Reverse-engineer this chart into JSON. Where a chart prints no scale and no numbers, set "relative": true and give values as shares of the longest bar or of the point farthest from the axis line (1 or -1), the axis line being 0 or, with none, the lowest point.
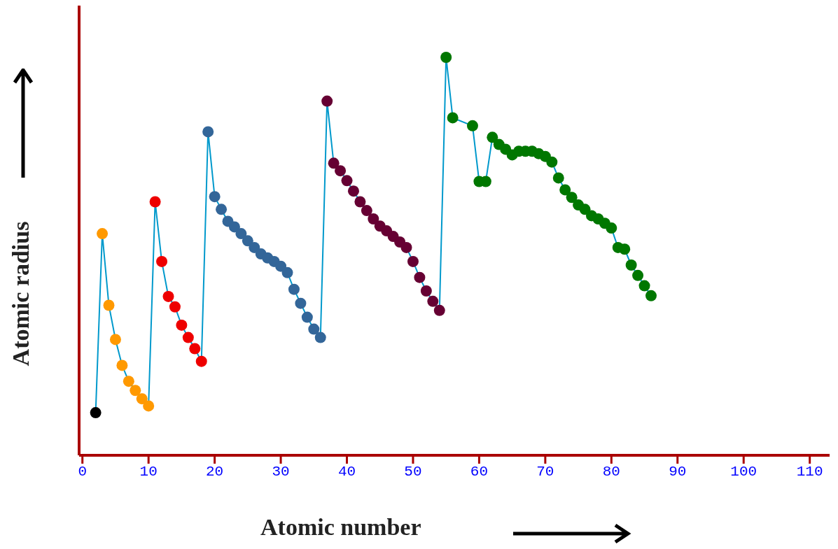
{
  "chart_data": {
    "type": "line",
    "xlabel": "Atomic number",
    "ylabel": "Atomic radius",
    "relative": true,
    "marker": "circle",
    "xlim": [
      -0.5,
      113
    ],
    "xticks": [
      0,
      10,
      20,
      30,
      40,
      50,
      60,
      70,
      80,
      90,
      100,
      110
    ],
    "x": [
      2,
      3,
      4,
      5,
      6,
      7,
      8,
      9,
      10,
      11,
      12,
      13,
      14,
      15,
      16,
      17,
      18,
      19,
      20,
      21,
      22,
      23,
      24,
      25,
      26,
      27,
      28,
      29,
      30,
      31,
      32,
      33,
      34,
      35,
      36,
      37,
      38,
      39,
      40,
      41,
      42,
      43,
      44,
      45,
      46,
      47,
      48,
      49,
      50,
      51,
      52,
      53,
      54,
      55,
      56,
      59,
      60,
      61,
      62,
      63,
      64,
      65,
      66,
      67,
      68,
      69,
      70,
      71,
      72,
      73,
      74,
      75,
      76,
      77,
      78,
      79,
      80,
      81,
      82,
      83,
      84,
      85,
      86
    ],
    "series": [
      {
        "color": "#0099cc",
        "values": [
          0.107,
          0.557,
          0.377,
          0.291,
          0.226,
          0.186,
          0.163,
          0.142,
          0.124,
          0.637,
          0.487,
          0.399,
          0.373,
          0.327,
          0.296,
          0.268,
          0.236,
          0.813,
          0.65,
          0.618,
          0.588,
          0.574,
          0.557,
          0.539,
          0.522,
          0.506,
          0.496,
          0.487,
          0.475,
          0.459,
          0.417,
          0.382,
          0.347,
          0.317,
          0.296,
          0.89,
          0.734,
          0.715,
          0.69,
          0.664,
          0.637,
          0.615,
          0.594,
          0.576,
          0.564,
          0.55,
          0.536,
          0.522,
          0.487,
          0.447,
          0.413,
          0.387,
          0.364,
          1,
          0.848,
          0.828,
          0.688,
          0.688,
          0.799,
          0.781,
          0.769,
          0.755,
          0.764,
          0.764,
          0.764,
          0.758,
          0.751,
          0.737,
          0.697,
          0.667,
          0.648,
          0.629,
          0.618,
          0.602,
          0.594,
          0.583,
          0.571,
          0.522,
          0.518,
          0.478,
          0.452,
          0.426,
          0.401
        ],
        "colors": [
          "#000000",
          "#ff9900",
          "#ff9900",
          "#ff9900",
          "#ff9900",
          "#ff9900",
          "#ff9900",
          "#ff9900",
          "#ff9900",
          "#ee0000",
          "#ee0000",
          "#ee0000",
          "#ee0000",
          "#ee0000",
          "#ee0000",
          "#ee0000",
          "#ee0000",
          "#336699",
          "#336699",
          "#336699",
          "#336699",
          "#336699",
          "#336699",
          "#336699",
          "#336699",
          "#336699",
          "#336699",
          "#336699",
          "#336699",
          "#336699",
          "#336699",
          "#336699",
          "#336699",
          "#336699",
          "#336699",
          "#660033",
          "#660033",
          "#660033",
          "#660033",
          "#660033",
          "#660033",
          "#660033",
          "#660033",
          "#660033",
          "#660033",
          "#660033",
          "#660033",
          "#660033",
          "#660033",
          "#660033",
          "#660033",
          "#660033",
          "#660033",
          "#007700",
          "#007700",
          "#007700",
          "#007700",
          "#007700",
          "#007700",
          "#007700",
          "#007700",
          "#007700",
          "#007700",
          "#007700",
          "#007700",
          "#007700",
          "#007700",
          "#007700",
          "#007700",
          "#007700",
          "#007700",
          "#007700",
          "#007700",
          "#007700",
          "#007700",
          "#007700",
          "#007700",
          "#007700",
          "#007700",
          "#007700",
          "#007700",
          "#007700",
          "#007700"
        ]
      }
    ]
  }
}
